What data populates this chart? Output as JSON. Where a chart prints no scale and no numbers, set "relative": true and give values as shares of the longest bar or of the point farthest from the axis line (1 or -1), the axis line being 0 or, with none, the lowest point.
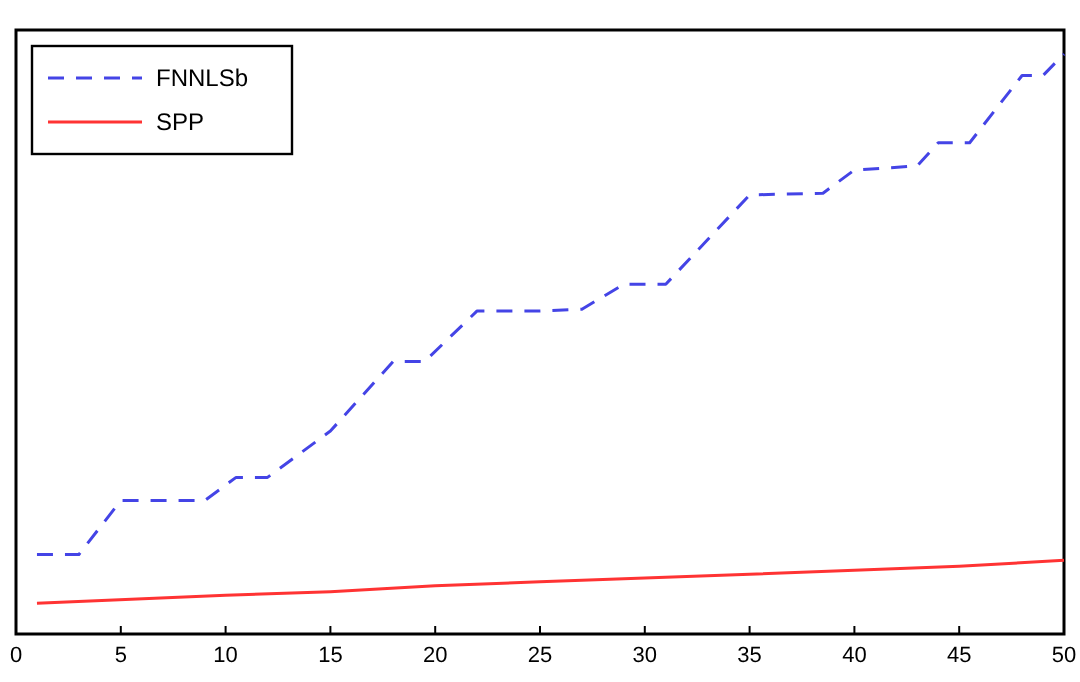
{
  "chart_data": {
    "type": "line",
    "relative": true,
    "xlim": [
      0,
      50
    ],
    "xticks": [
      0,
      5,
      10,
      15,
      20,
      25,
      30,
      35,
      40,
      45,
      50
    ],
    "legend": "top left",
    "grid": false,
    "series": [
      {
        "name": "FNNLSb",
        "color": "#4444e6",
        "line_style": "dashed",
        "x": [
          1,
          3,
          5,
          9,
          10.5,
          12,
          15,
          18,
          19.5,
          22,
          25,
          27,
          29,
          31,
          35,
          38.5,
          40,
          43,
          44,
          45.5,
          48,
          49,
          50
        ],
        "values": [
          0.137,
          0.137,
          0.23,
          0.23,
          0.27,
          0.27,
          0.35,
          0.47,
          0.47,
          0.557,
          0.557,
          0.56,
          0.603,
          0.603,
          0.757,
          0.76,
          0.8,
          0.807,
          0.847,
          0.847,
          0.963,
          0.963,
          1
        ]
      },
      {
        "name": "SPP",
        "color": "#ff3333",
        "line_style": "solid",
        "x": [
          1,
          10,
          15,
          20,
          25,
          35,
          40,
          45,
          50
        ],
        "values": [
          0.053,
          0.067,
          0.073,
          0.083,
          0.09,
          0.103,
          0.11,
          0.117,
          0.127
        ]
      }
    ]
  }
}
